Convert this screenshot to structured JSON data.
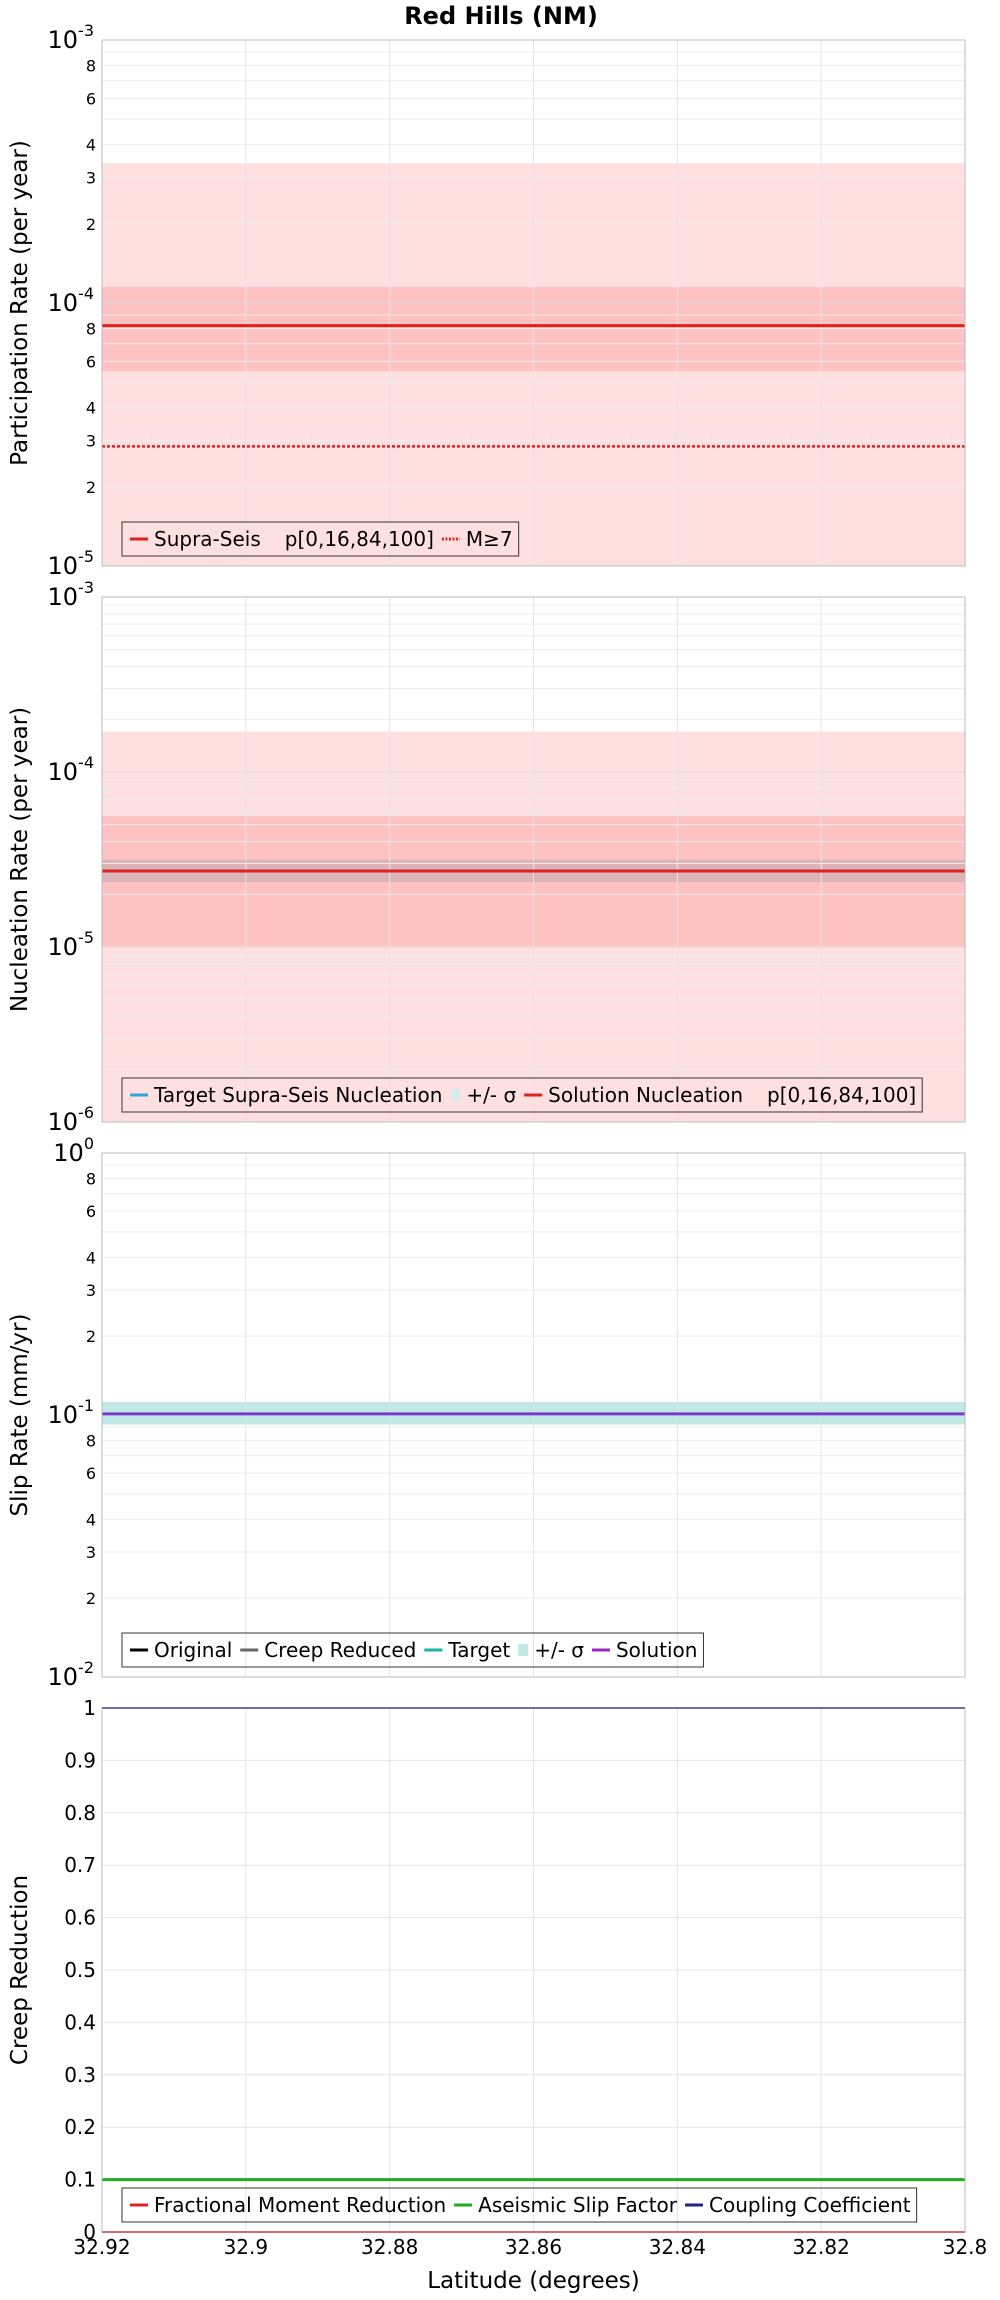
{
  "title": "Red Hills (NM)",
  "chart_data": [
    {
      "type": "line",
      "scale": "log",
      "ylabel": "Participation Rate (per year)",
      "ylim": [
        1e-05,
        0.001
      ],
      "major_ticks": [
        {
          "v": 1e-05,
          "base": "10",
          "exp": "-5"
        },
        {
          "v": 0.0001,
          "base": "10",
          "exp": "-4"
        },
        {
          "v": 0.001,
          "base": "10",
          "exp": "-3"
        }
      ],
      "minor_labels": [
        {
          "v": 2e-05,
          "label": "2"
        },
        {
          "v": 3e-05,
          "label": "3"
        },
        {
          "v": 4e-05,
          "label": "4"
        },
        {
          "v": 6e-05,
          "label": "6"
        },
        {
          "v": 8e-05,
          "label": "8"
        },
        {
          "v": 0.0002,
          "label": "2"
        },
        {
          "v": 0.0003,
          "label": "3"
        },
        {
          "v": 0.0004,
          "label": "4"
        },
        {
          "v": 0.0006,
          "label": "6"
        },
        {
          "v": 0.0008,
          "label": "8"
        }
      ],
      "bands": [
        {
          "name": "p[0,16,84,100] outer",
          "low": 1e-05,
          "high": 0.00034,
          "color": "#ffe0e0"
        },
        {
          "name": "p[0,16,84,100] inner",
          "low": 5.5e-05,
          "high": 0.000115,
          "color": "#ffc2c2"
        }
      ],
      "series": [
        {
          "name": "Supra-Seis",
          "value": 8.2e-05,
          "color": "#dd2222",
          "width": 3,
          "dash": ""
        },
        {
          "name": "M≥7",
          "value": 2.85e-05,
          "color": "#dd2222",
          "width": 2.5,
          "dash": "3,2"
        }
      ],
      "legend": [
        {
          "label": "Supra-Seis",
          "kind": "line",
          "color": "#dd2222"
        },
        {
          "label": "p[0,16,84,100]",
          "kind": "patch",
          "color": "#ffe0e0"
        },
        {
          "label": "M≥7",
          "kind": "dotted",
          "color": "#dd2222"
        }
      ]
    },
    {
      "type": "line",
      "scale": "log",
      "ylabel": "Nucleation Rate (per year)",
      "ylim": [
        1e-06,
        0.001
      ],
      "major_ticks": [
        {
          "v": 1e-06,
          "base": "10",
          "exp": "-6"
        },
        {
          "v": 1e-05,
          "base": "10",
          "exp": "-5"
        },
        {
          "v": 0.0001,
          "base": "10",
          "exp": "-4"
        },
        {
          "v": 0.001,
          "base": "10",
          "exp": "-3"
        }
      ],
      "minor_labels": [],
      "bands": [
        {
          "name": "p[0,16,84,100] outer",
          "low": 1e-06,
          "high": 0.00017,
          "color": "#ffe0e0"
        },
        {
          "name": "p[0,16,84,100] inner",
          "low": 1e-05,
          "high": 5.6e-05,
          "color": "#ffc2c2"
        },
        {
          "name": "+/- σ",
          "low": 2.35e-05,
          "high": 3.15e-05,
          "color": "#dcb4b8"
        }
      ],
      "series": [
        {
          "name": "Target Supra-Seis Nucleation",
          "value": 2.7e-05,
          "color": "#2ba6d6",
          "width": 1.5,
          "dash": ""
        },
        {
          "name": "Solution Nucleation",
          "value": 2.72e-05,
          "color": "#dd2222",
          "width": 3,
          "dash": ""
        }
      ],
      "legend": [
        {
          "label": "Target Supra-Seis Nucleation",
          "kind": "line",
          "color": "#2ba6d6"
        },
        {
          "label": "+/- σ",
          "kind": "patch",
          "color": "#d9eaea"
        },
        {
          "label": "Solution Nucleation",
          "kind": "line",
          "color": "#dd2222"
        },
        {
          "label": "p[0,16,84,100]",
          "kind": "patch",
          "color": "#ffe0e0"
        }
      ]
    },
    {
      "type": "line",
      "scale": "log",
      "ylabel": "Slip Rate (mm/yr)",
      "ylim": [
        0.01,
        1
      ],
      "major_ticks": [
        {
          "v": 0.01,
          "base": "10",
          "exp": "-2"
        },
        {
          "v": 0.1,
          "base": "10",
          "exp": "-1"
        },
        {
          "v": 1,
          "base": "10",
          "exp": "0"
        }
      ],
      "minor_labels": [
        {
          "v": 0.02,
          "label": "2"
        },
        {
          "v": 0.03,
          "label": "3"
        },
        {
          "v": 0.04,
          "label": "4"
        },
        {
          "v": 0.06,
          "label": "6"
        },
        {
          "v": 0.08,
          "label": "8"
        },
        {
          "v": 0.2,
          "label": "2"
        },
        {
          "v": 0.3,
          "label": "3"
        },
        {
          "v": 0.4,
          "label": "4"
        },
        {
          "v": 0.6,
          "label": "6"
        },
        {
          "v": 0.8,
          "label": "8"
        }
      ],
      "bands": [
        {
          "name": "+/- σ",
          "low": 0.092,
          "high": 0.112,
          "color": "#c0e8e4"
        }
      ],
      "series": [
        {
          "name": "Target",
          "value": 0.101,
          "color": "#1ab3a0",
          "width": 2,
          "dash": ""
        },
        {
          "name": "Solution",
          "value": 0.101,
          "color": "#7a3ccc",
          "width": 3,
          "dash": ""
        }
      ],
      "legend": [
        {
          "label": "Original",
          "kind": "line",
          "color": "#000000"
        },
        {
          "label": "Creep Reduced",
          "kind": "line",
          "color": "#666666"
        },
        {
          "label": "Target",
          "kind": "line",
          "color": "#1ab3a0"
        },
        {
          "label": "+/- σ",
          "kind": "patch",
          "color": "#c0e8e4"
        },
        {
          "label": "Solution",
          "kind": "line",
          "color": "#a020c8"
        }
      ]
    },
    {
      "type": "line",
      "scale": "linear",
      "ylabel": "Creep Reduction",
      "xlabel": "Latitude (degrees)",
      "ylim": [
        0,
        1
      ],
      "yticks": [
        {
          "v": 0,
          "label": "0"
        },
        {
          "v": 0.1,
          "label": "0.1"
        },
        {
          "v": 0.2,
          "label": "0.2"
        },
        {
          "v": 0.3,
          "label": "0.3"
        },
        {
          "v": 0.4,
          "label": "0.4"
        },
        {
          "v": 0.5,
          "label": "0.5"
        },
        {
          "v": 0.6,
          "label": "0.6"
        },
        {
          "v": 0.7,
          "label": "0.7"
        },
        {
          "v": 0.8,
          "label": "0.8"
        },
        {
          "v": 0.9,
          "label": "0.9"
        },
        {
          "v": 1,
          "label": "1"
        }
      ],
      "bands": [],
      "series": [
        {
          "name": "Fractional Moment Reduction",
          "value": 0,
          "color": "#dd2222",
          "width": 2,
          "dash": ""
        },
        {
          "name": "Aseismic Slip Factor",
          "value": 0.1,
          "color": "#22aa22",
          "width": 3,
          "dash": ""
        },
        {
          "name": "Coupling Coefficient",
          "value": 1.0,
          "color": "#22228a",
          "width": 2,
          "dash": ""
        }
      ],
      "legend": [
        {
          "label": "Fractional Moment Reduction",
          "kind": "line",
          "color": "#dd2222"
        },
        {
          "label": "Aseismic Slip Factor",
          "kind": "line",
          "color": "#22aa22"
        },
        {
          "label": "Coupling Coefficient",
          "kind": "line",
          "color": "#22228a"
        }
      ]
    }
  ],
  "x_axis": {
    "label": "Latitude (degrees)",
    "xlim": [
      32.92,
      32.8
    ],
    "ticks": [
      {
        "v": 32.92,
        "label": "32.92"
      },
      {
        "v": 32.9,
        "label": "32.9"
      },
      {
        "v": 32.88,
        "label": "32.88"
      },
      {
        "v": 32.86,
        "label": "32.86"
      },
      {
        "v": 32.84,
        "label": "32.84"
      },
      {
        "v": 32.82,
        "label": "32.82"
      },
      {
        "v": 32.8,
        "label": "32.8"
      }
    ]
  }
}
